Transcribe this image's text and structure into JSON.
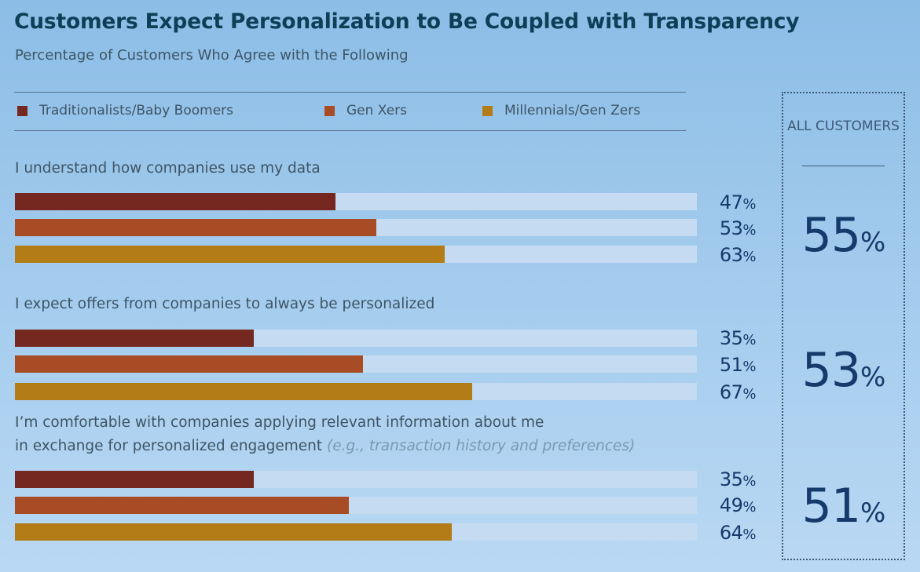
{
  "chart_data": {
    "type": "bar",
    "orientation": "horizontal",
    "title": "Customers Expect Personalization to Be Coupled with Transparency",
    "subtitle": "Percentage of Customers Who Agree with the Following",
    "xlim": [
      0,
      100
    ],
    "unit": "%",
    "legend": [
      {
        "name": "Traditionalists/Baby Boomers",
        "color": "#74281f"
      },
      {
        "name": "Gen Xers",
        "color": "#a84c25"
      },
      {
        "name": "Millennials/Gen Zers",
        "color": "#b37c17"
      }
    ],
    "all_customers_label": "ALL CUSTOMERS",
    "questions": [
      {
        "label": "I understand how companies use my data",
        "values": [
          47,
          53,
          63
        ],
        "all": 55
      },
      {
        "label": "I expect offers from companies to always be personalized",
        "values": [
          35,
          51,
          67
        ],
        "all": 53
      },
      {
        "label_line1": "I’m comfortable with companies applying relevant information about me",
        "label_line2": "in exchange for personalized engagement",
        "label_note": "(e.g., transaction history and preferences)",
        "values": [
          35,
          49,
          64
        ],
        "all": 51
      }
    ],
    "track_color": "#c4dbf1"
  }
}
